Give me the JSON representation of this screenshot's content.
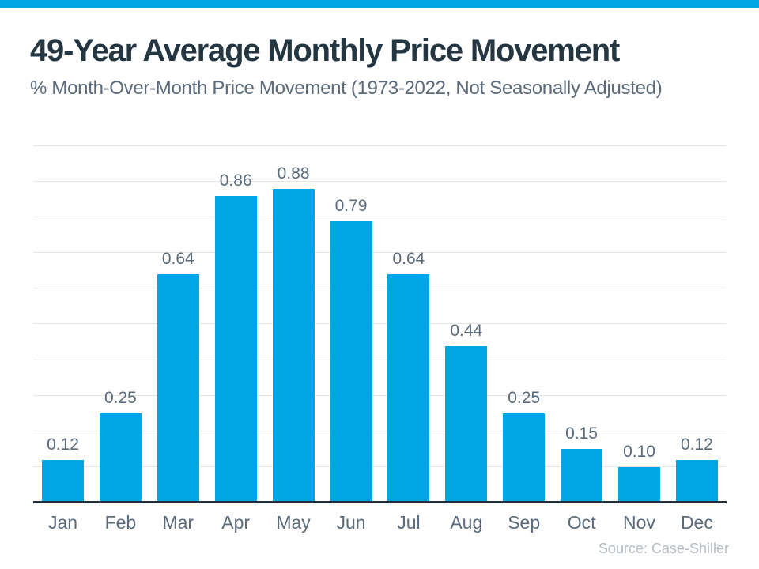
{
  "page": {
    "accent_color": "#00a6e4",
    "background_color": "#ffffff"
  },
  "header": {
    "title": "49-Year Average Monthly Price Movement",
    "subtitle": "% Month-Over-Month Price Movement (1973-2022, Not Seasonally Adjusted)"
  },
  "footer": {
    "source": "Source: Case-Shiller"
  },
  "chart_data": {
    "type": "bar",
    "title": "49-Year Average Monthly Price Movement",
    "subtitle": "% Month-Over-Month Price Movement (1973-2022, Not Seasonally Adjusted)",
    "categories": [
      "Jan",
      "Feb",
      "Mar",
      "Apr",
      "May",
      "Jun",
      "Jul",
      "Aug",
      "Sep",
      "Oct",
      "Nov",
      "Dec"
    ],
    "values": [
      0.12,
      0.25,
      0.64,
      0.86,
      0.88,
      0.79,
      0.64,
      0.44,
      0.25,
      0.15,
      0.1,
      0.12
    ],
    "value_labels": [
      "0.12",
      "0.25",
      "0.64",
      "0.86",
      "0.88",
      "0.79",
      "0.64",
      "0.44",
      "0.25",
      "0.15",
      "0.10",
      "0.12"
    ],
    "xlabel": "",
    "ylabel": "",
    "ylim": [
      0,
      1.0
    ],
    "grid": true,
    "gridline_step": 0.1,
    "legend": "none",
    "bar_color": "#00a6e4",
    "gridline_color": "#e5e5e5",
    "axis_color": "#222f3a",
    "label_color": "#5b6b7c",
    "source": "Source: Case-Shiller"
  }
}
